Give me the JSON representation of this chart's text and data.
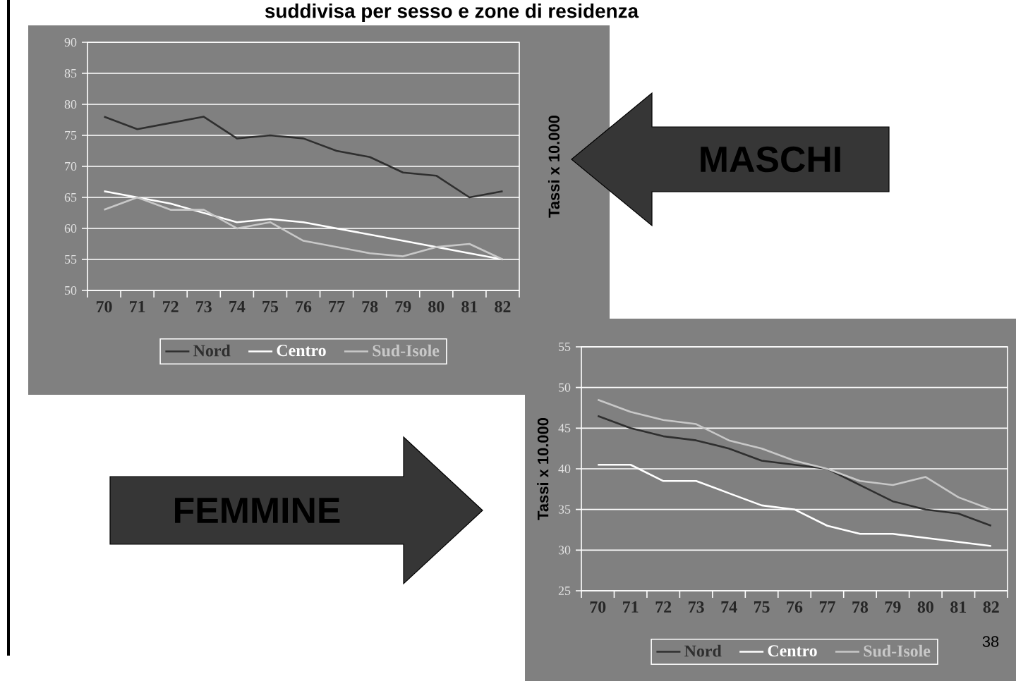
{
  "chart_data": [
    {
      "type": "line",
      "title": "suddivisa per sesso e zone di residenza",
      "ylabel": "Tassi x 10.000",
      "annotations": [
        "MASCHI"
      ],
      "categories": [
        "70",
        "71",
        "72",
        "73",
        "74",
        "75",
        "76",
        "77",
        "78",
        "79",
        "80",
        "81",
        "82"
      ],
      "series": [
        {
          "name": "Nord",
          "color": "#2f2f2f",
          "values": [
            78,
            76,
            77,
            78,
            74.5,
            75,
            74.5,
            72.5,
            71.5,
            69,
            68.5,
            65,
            66
          ]
        },
        {
          "name": "Centro",
          "color": "#ffffff",
          "values": [
            66,
            65,
            64,
            62.5,
            61,
            61.5,
            61,
            60,
            59,
            58,
            57,
            56,
            55
          ]
        },
        {
          "name": "Sud-Isole",
          "color": "#c8c8c8",
          "values": [
            63,
            65,
            63,
            63,
            60,
            61,
            58,
            57,
            56,
            55.5,
            57,
            57.5,
            55
          ]
        }
      ],
      "ylim": [
        50,
        90
      ],
      "yticks": [
        50,
        55,
        60,
        65,
        70,
        75,
        80,
        85,
        90
      ],
      "grid": "y",
      "legend": "bottom"
    },
    {
      "type": "line",
      "ylabel": "Tassi x 10.000",
      "annotations": [
        "FEMMINE",
        "38"
      ],
      "categories": [
        "70",
        "71",
        "72",
        "73",
        "74",
        "75",
        "76",
        "77",
        "78",
        "79",
        "80",
        "81",
        "82"
      ],
      "series": [
        {
          "name": "Nord",
          "color": "#2f2f2f",
          "values": [
            46.5,
            45,
            44,
            43.5,
            42.5,
            41,
            40.5,
            40,
            38,
            36,
            35,
            34.5,
            33
          ]
        },
        {
          "name": "Centro",
          "color": "#ffffff",
          "values": [
            40.5,
            40.5,
            38.5,
            38.5,
            37,
            35.5,
            35,
            33,
            32,
            32,
            31.5,
            31,
            30.5
          ]
        },
        {
          "name": "Sud-Isole",
          "color": "#c8c8c8",
          "values": [
            48.5,
            47,
            46,
            45.5,
            43.5,
            42.5,
            41,
            40,
            38.5,
            38,
            39,
            36.5,
            35
          ]
        }
      ],
      "ylim": [
        25,
        55
      ],
      "yticks": [
        25,
        30,
        35,
        40,
        45,
        50,
        55
      ],
      "grid": "y",
      "legend": "bottom"
    }
  ]
}
